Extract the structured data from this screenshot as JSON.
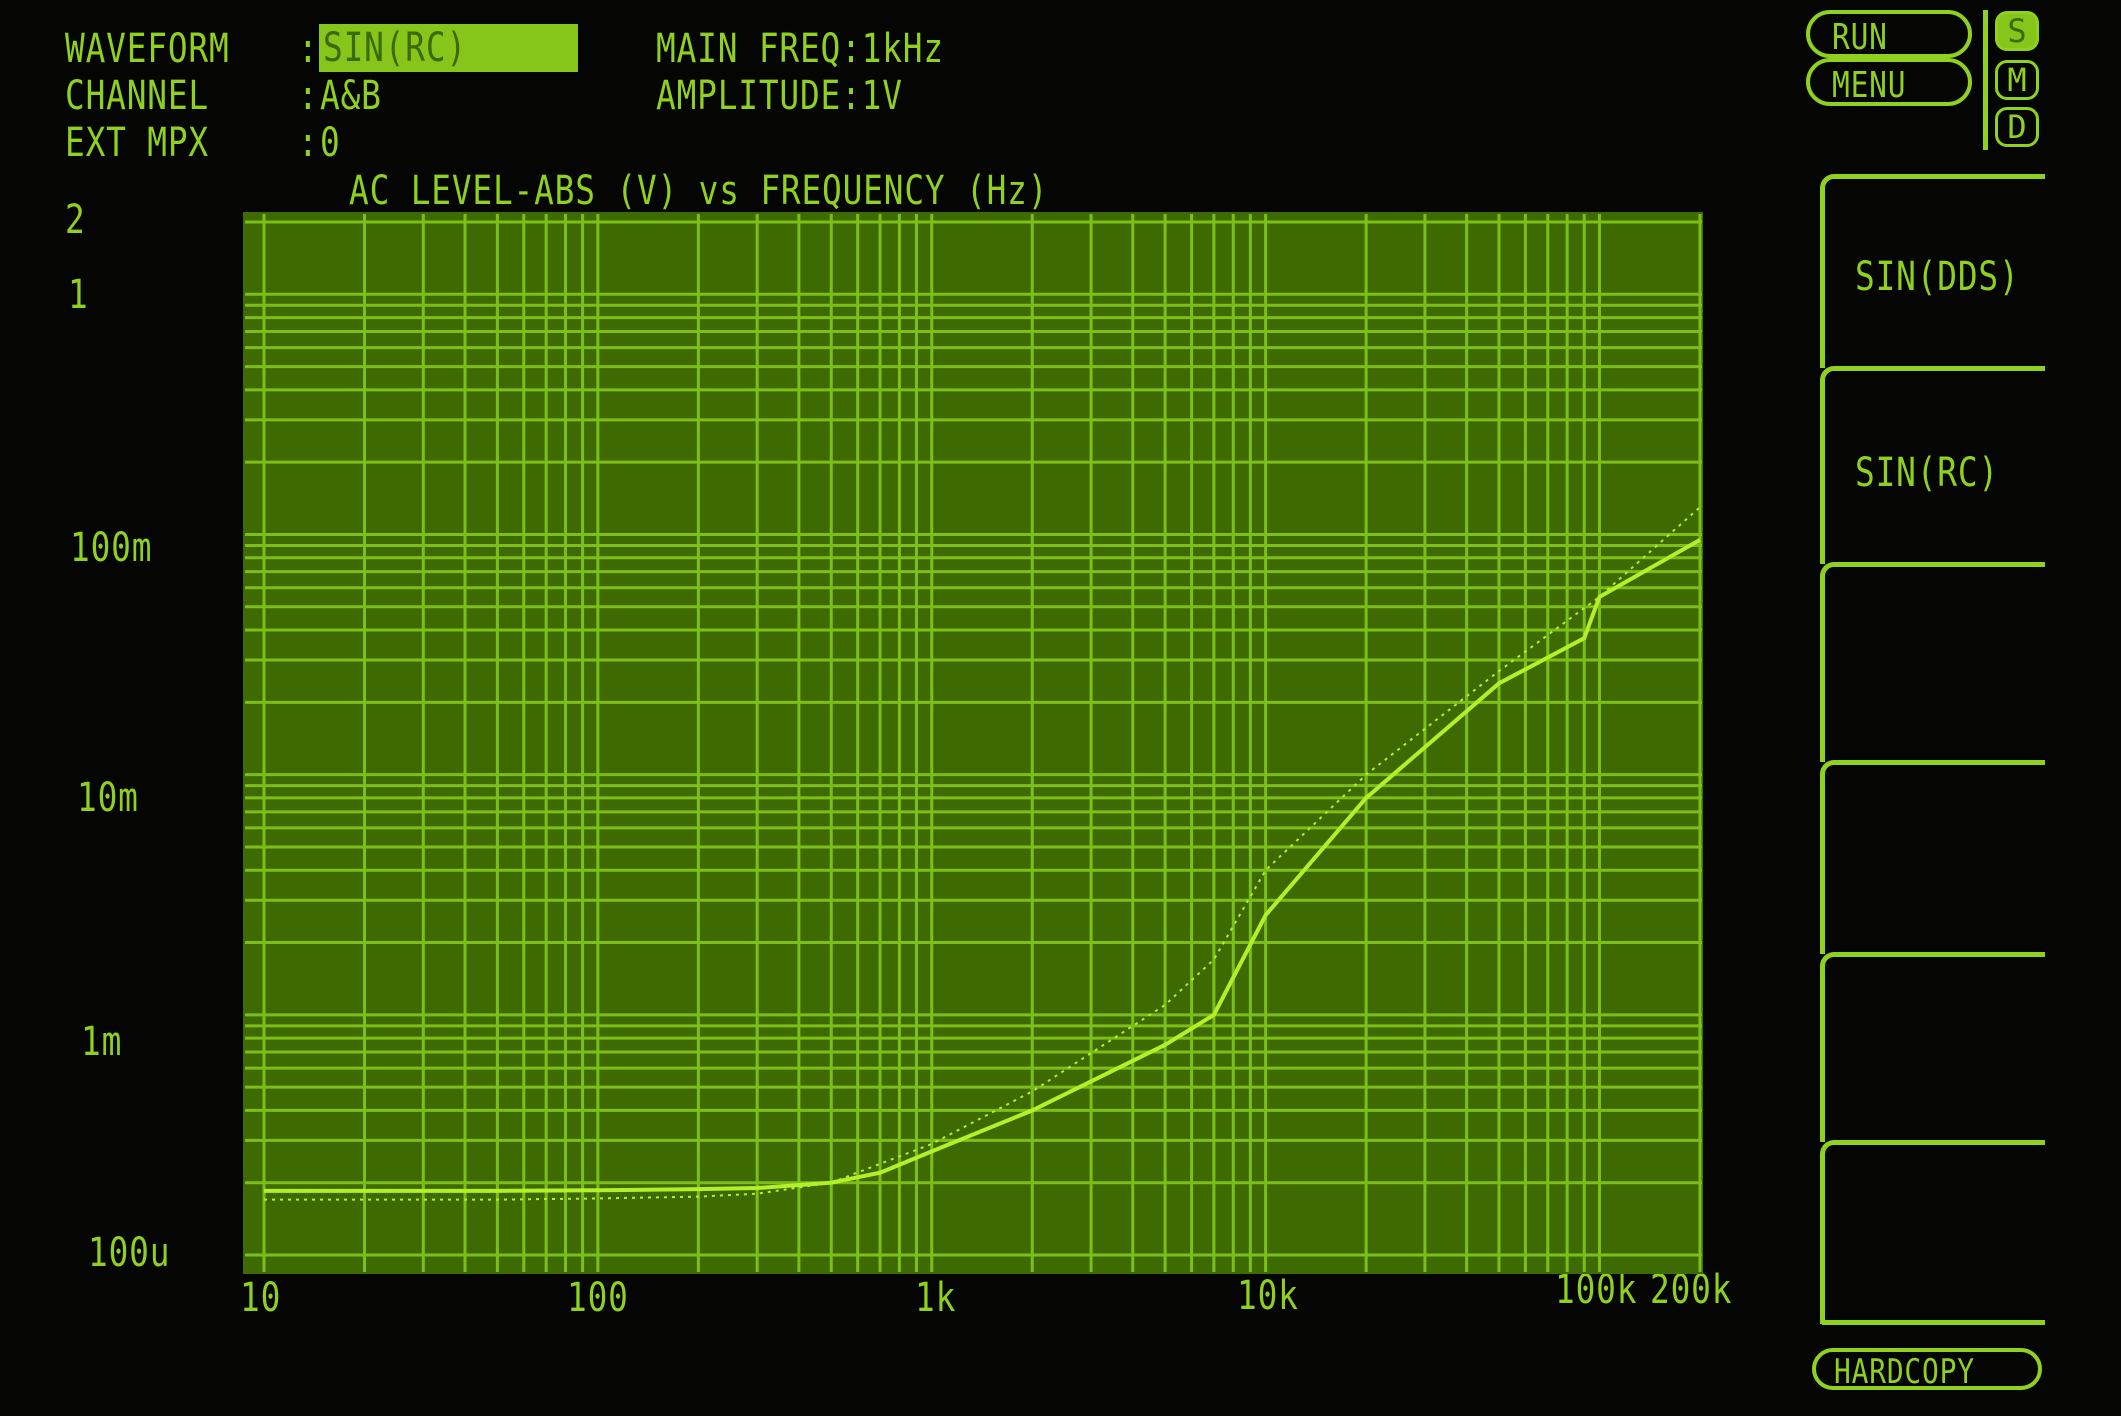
{
  "header": {
    "waveform_label": "WAVEFORM",
    "waveform_value": "SIN(RC)",
    "channel_label": "CHANNEL",
    "channel_value": "A&B",
    "ext_mpx_label": "EXT MPX",
    "ext_mpx_value": "0",
    "separator": ":",
    "main_freq": "MAIN FREQ:1kHz",
    "amplitude": "AMPLITUDE:1V"
  },
  "buttons": {
    "run": "RUN",
    "menu": "MENU",
    "mode_s": "S",
    "mode_m": "M",
    "mode_d": "D",
    "hardcopy": "HARDCOPY"
  },
  "softkeys": [
    {
      "label": "SIN(DDS)"
    },
    {
      "label": "SIN(RC)"
    },
    {
      "label": ""
    },
    {
      "label": ""
    },
    {
      "label": ""
    },
    {
      "label": ""
    }
  ],
  "colors": {
    "phosphor": "#8fd11e",
    "plot_background": "#3d6b02",
    "grid": "#7dbf18",
    "trace": "#b4f02a",
    "screen": "#050604"
  },
  "chart_data": {
    "type": "line",
    "title": "AC LEVEL-ABS (V) vs FREQUENCY (Hz)",
    "x_scale": "log",
    "y_scale": "log",
    "xlim": [
      10,
      200000
    ],
    "ylim": [
      0.0001,
      2
    ],
    "grid": true,
    "x_ticks": [
      {
        "value": 10,
        "label": "10"
      },
      {
        "value": 100,
        "label": "100"
      },
      {
        "value": 1000,
        "label": "1k"
      },
      {
        "value": 10000,
        "label": "10k"
      },
      {
        "value": 100000,
        "label": "100k"
      },
      {
        "value": 200000,
        "label": "200k"
      }
    ],
    "y_ticks": [
      {
        "value": 2,
        "label": "2"
      },
      {
        "value": 1,
        "label": "1"
      },
      {
        "value": 0.1,
        "label": "100m"
      },
      {
        "value": 0.01,
        "label": "10m"
      },
      {
        "value": 0.001,
        "label": "1m"
      },
      {
        "value": 0.0001,
        "label": "100u"
      }
    ],
    "series": [
      {
        "style": "solid",
        "x": [
          10,
          20,
          50,
          100,
          200,
          300,
          500,
          700,
          1000,
          2000,
          5000,
          7000,
          10000,
          20000,
          50000,
          90000,
          100000,
          200000
        ],
        "y": [
          0.000185,
          0.000185,
          0.000185,
          0.000186,
          0.000188,
          0.00019,
          0.0002,
          0.00022,
          0.00027,
          0.0004,
          0.00075,
          0.001,
          0.0026,
          0.008,
          0.024,
          0.037,
          0.055,
          0.095
        ]
      },
      {
        "style": "dotted",
        "x": [
          10,
          20,
          50,
          100,
          200,
          300,
          500,
          1000,
          2000,
          5000,
          7000,
          10000,
          20000,
          50000,
          100000,
          200000
        ],
        "y": [
          0.00017,
          0.00017,
          0.00017,
          0.000172,
          0.000175,
          0.00018,
          0.0002,
          0.00029,
          0.00048,
          0.0011,
          0.0017,
          0.004,
          0.01,
          0.027,
          0.055,
          0.13
        ]
      }
    ]
  }
}
